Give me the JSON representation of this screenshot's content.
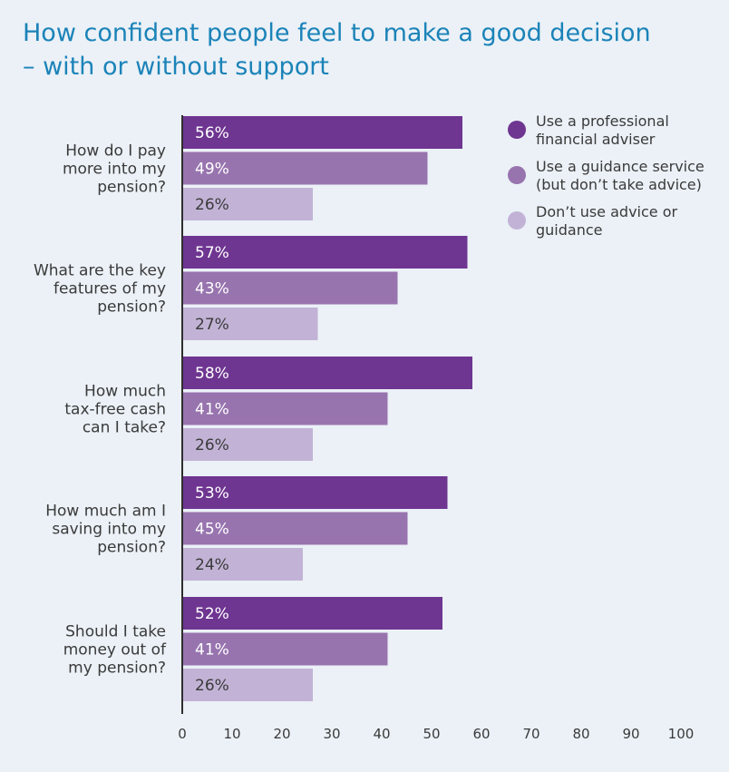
{
  "chart_data": {
    "type": "bar",
    "orientation": "horizontal",
    "title": [
      "How confident people feel to make a good decision",
      "– with or without support"
    ],
    "categories": [
      [
        "How do I pay",
        "more into my",
        "pension?"
      ],
      [
        "What are the key",
        "features of my",
        "pension?"
      ],
      [
        "How much",
        "tax-free cash",
        "can I take?"
      ],
      [
        "How much am I",
        "saving into my",
        "pension?"
      ],
      [
        "Should I take",
        "money out of",
        "my pension?"
      ]
    ],
    "series": [
      {
        "name": [
          "Use a professional",
          "financial adviser"
        ],
        "color": "#6e3591",
        "label_color": "#ffffff",
        "values": [
          56,
          57,
          58,
          53,
          52
        ]
      },
      {
        "name": [
          "Use a guidance service",
          "(but don’t take advice)"
        ],
        "color": "#9874af",
        "label_color": "#ffffff",
        "values": [
          49,
          43,
          41,
          45,
          41
        ]
      },
      {
        "name": [
          "Don’t use advice or",
          "guidance"
        ],
        "color": "#c2b3d6",
        "label_color": "#3a3a3a",
        "values": [
          26,
          27,
          26,
          24,
          26
        ]
      }
    ],
    "value_suffix": "%",
    "xlim": [
      0,
      100
    ],
    "xticks": [
      0,
      10,
      20,
      30,
      40,
      50,
      60,
      70,
      80,
      90,
      100
    ],
    "grid": false,
    "legend_position": "top-right"
  }
}
